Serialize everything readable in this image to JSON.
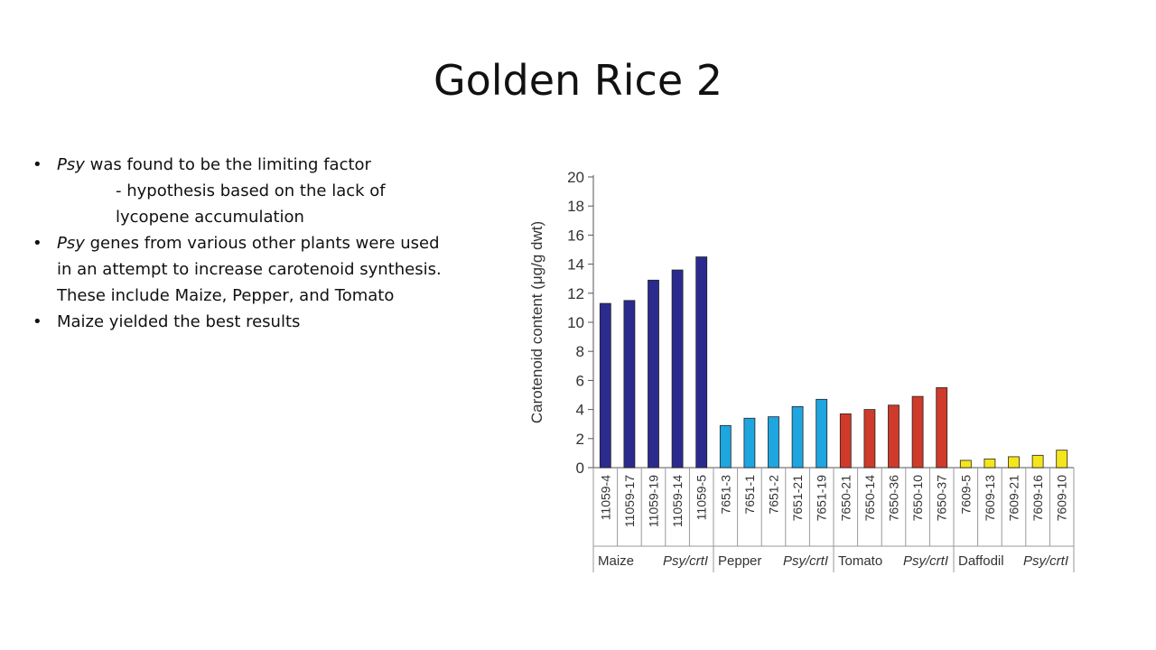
{
  "slide": {
    "title": "Golden Rice 2",
    "bullets": [
      {
        "em": "Psy",
        "rest": " was found to be the limiting factor"
      },
      {
        "sub": "- hypothesis based on the lack of lycopene accumulation"
      },
      {
        "em": "Psy",
        "rest": " genes from various other plants were used in an attempt to increase carotenoid synthesis. These include Maize, Pepper, and Tomato"
      },
      {
        "text": "Maize yielded the best results"
      }
    ]
  },
  "chart_data": {
    "type": "bar",
    "ylabel": "Carotenoid content (μg/g dwt)",
    "ylim": [
      0,
      20
    ],
    "yticks": [
      0,
      2,
      4,
      6,
      8,
      10,
      12,
      14,
      16,
      18,
      20
    ],
    "categories": [
      "11059-4",
      "11059-17",
      "11059-19",
      "11059-14",
      "11059-5",
      "7651-3",
      "7651-1",
      "7651-2",
      "7651-21",
      "7651-19",
      "7650-21",
      "7650-14",
      "7650-36",
      "7650-10",
      "7650-37",
      "7609-5",
      "7609-13",
      "7609-21",
      "7609-16",
      "7609-10"
    ],
    "values": [
      11.3,
      11.5,
      12.9,
      13.6,
      14.5,
      2.9,
      3.4,
      3.5,
      4.2,
      4.7,
      3.7,
      4.0,
      4.3,
      4.9,
      5.5,
      0.5,
      0.6,
      0.75,
      0.85,
      1.2
    ],
    "groups": [
      {
        "name": "Maize",
        "suffix": "Psy/crtI",
        "start": 0,
        "count": 5,
        "color": "#2b2b8f"
      },
      {
        "name": "Pepper",
        "suffix": "Psy/crtI",
        "start": 5,
        "count": 5,
        "color": "#1ea6e0"
      },
      {
        "name": "Tomato",
        "suffix": "Psy/crtI",
        "start": 10,
        "count": 5,
        "color": "#d03a2a"
      },
      {
        "name": "Daffodil",
        "suffix": "Psy/crtI",
        "start": 15,
        "count": 5,
        "color": "#f4e61a"
      }
    ],
    "grid": false
  }
}
